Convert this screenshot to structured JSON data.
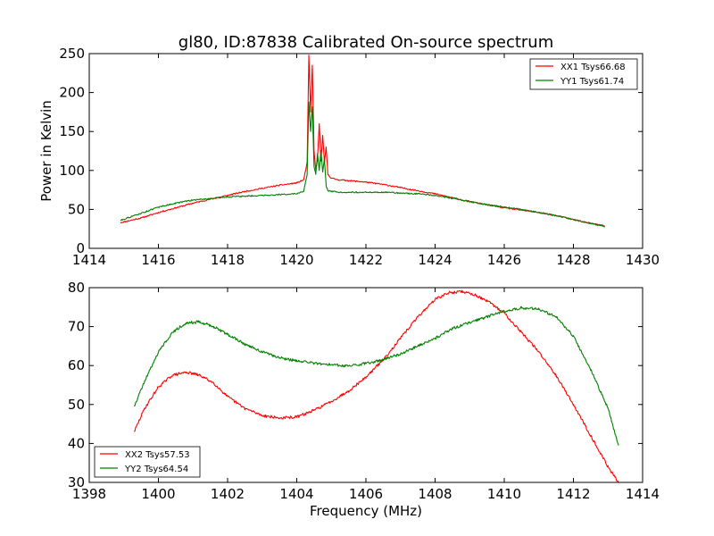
{
  "figure": {
    "title": "gl80, ID:87838 Calibrated On-source spectrum",
    "xlabel": "Frequency (MHz)",
    "ylabel": "Power in Kelvin"
  },
  "chart_data": [
    {
      "type": "line",
      "title": "gl80, ID:87838 Calibrated On-source spectrum",
      "xlabel": "",
      "ylabel": "Power in Kelvin",
      "xlim": [
        1414,
        1430
      ],
      "ylim": [
        0,
        250
      ],
      "xticks": [
        1414,
        1416,
        1418,
        1420,
        1422,
        1424,
        1426,
        1428,
        1430
      ],
      "yticks": [
        0,
        50,
        100,
        150,
        200,
        250
      ],
      "grid": false,
      "legend_position": "top-right",
      "series": [
        {
          "name": "XX1 Tsys66.68",
          "color": "#ff0000",
          "x": [
            1414.9,
            1415.5,
            1416.0,
            1416.5,
            1417.0,
            1417.5,
            1418.0,
            1418.5,
            1419.0,
            1419.5,
            1420.0,
            1420.2,
            1420.3,
            1420.35,
            1420.4,
            1420.45,
            1420.5,
            1420.55,
            1420.6,
            1420.65,
            1420.7,
            1420.75,
            1420.8,
            1420.85,
            1420.9,
            1421.0,
            1421.2,
            1421.5,
            1422.0,
            1422.5,
            1423.0,
            1423.5,
            1424.0,
            1424.5,
            1425.0,
            1425.5,
            1426.0,
            1426.5,
            1427.0,
            1427.5,
            1428.0,
            1428.5,
            1428.9
          ],
          "y": [
            33,
            39,
            46,
            52,
            58,
            63,
            68,
            73,
            77,
            81,
            84,
            88,
            110,
            248,
            175,
            235,
            125,
            100,
            115,
            160,
            112,
            145,
            110,
            130,
            95,
            90,
            88,
            87,
            85,
            82,
            78,
            74,
            70,
            65,
            60,
            56,
            52,
            49,
            46,
            42,
            37,
            32,
            29
          ]
        },
        {
          "name": "YY1 Tsys61.74",
          "color": "#008000",
          "x": [
            1414.9,
            1415.5,
            1416.0,
            1416.5,
            1417.0,
            1417.5,
            1418.0,
            1418.5,
            1419.0,
            1419.5,
            1420.0,
            1420.2,
            1420.3,
            1420.35,
            1420.4,
            1420.45,
            1420.5,
            1420.55,
            1420.6,
            1420.65,
            1420.7,
            1420.75,
            1420.8,
            1420.85,
            1420.9,
            1421.0,
            1421.2,
            1421.5,
            1422.0,
            1422.5,
            1423.0,
            1423.5,
            1424.0,
            1424.5,
            1425.0,
            1425.5,
            1426.0,
            1426.5,
            1427.0,
            1427.5,
            1428.0,
            1428.5,
            1428.9
          ],
          "y": [
            36,
            45,
            53,
            58,
            62,
            64,
            66,
            67,
            68,
            69,
            70,
            73,
            95,
            188,
            150,
            182,
            105,
            95,
            122,
            100,
            125,
            98,
            115,
            80,
            74,
            73,
            72,
            72,
            72,
            72,
            71,
            70,
            68,
            64,
            60,
            56,
            53,
            50,
            46,
            42,
            37,
            32,
            28
          ]
        }
      ]
    },
    {
      "type": "line",
      "title": "",
      "xlabel": "Frequency (MHz)",
      "ylabel": "",
      "xlim": [
        1398,
        1414
      ],
      "ylim": [
        30,
        80
      ],
      "xticks": [
        1398,
        1400,
        1402,
        1404,
        1406,
        1408,
        1410,
        1412,
        1414
      ],
      "yticks": [
        30,
        40,
        50,
        60,
        70,
        80
      ],
      "grid": false,
      "legend_position": "bottom-left",
      "series": [
        {
          "name": "XX2 Tsys57.53",
          "color": "#ff0000",
          "x": [
            1399.3,
            1399.6,
            1400.0,
            1400.4,
            1400.8,
            1401.2,
            1401.6,
            1402.0,
            1402.5,
            1403.0,
            1403.5,
            1404.0,
            1404.5,
            1405.0,
            1405.5,
            1406.0,
            1406.5,
            1407.0,
            1407.5,
            1408.0,
            1408.4,
            1408.8,
            1409.2,
            1409.6,
            1410.0,
            1410.5,
            1411.0,
            1411.5,
            1412.0,
            1412.5,
            1413.0,
            1413.3
          ],
          "y": [
            43,
            49,
            54.5,
            57.5,
            58.3,
            57.5,
            55.5,
            52,
            49,
            47.2,
            46.5,
            46.8,
            48.5,
            50.8,
            53.5,
            57,
            61.5,
            67,
            72.5,
            77,
            78.7,
            79,
            78,
            76,
            73.5,
            68.5,
            63.5,
            57.5,
            50,
            42,
            34,
            30
          ]
        },
        {
          "name": "YY2 Tsys64.54",
          "color": "#008000",
          "x": [
            1399.3,
            1399.6,
            1400.0,
            1400.4,
            1400.8,
            1401.2,
            1401.6,
            1402.0,
            1402.5,
            1403.0,
            1403.5,
            1404.0,
            1404.5,
            1405.0,
            1405.5,
            1406.0,
            1406.5,
            1407.0,
            1407.5,
            1408.0,
            1408.5,
            1409.0,
            1409.5,
            1410.0,
            1410.5,
            1411.0,
            1411.5,
            1412.0,
            1412.5,
            1413.0,
            1413.3
          ],
          "y": [
            49.5,
            56,
            63.5,
            68.5,
            71,
            71.2,
            70,
            68,
            65.5,
            63.5,
            62,
            61.2,
            60.6,
            60.2,
            59.9,
            60.5,
            61.5,
            63,
            65,
            67,
            69.5,
            71,
            72.5,
            74,
            74.8,
            74.5,
            72.5,
            67.5,
            59,
            49,
            39.5
          ]
        }
      ]
    }
  ]
}
